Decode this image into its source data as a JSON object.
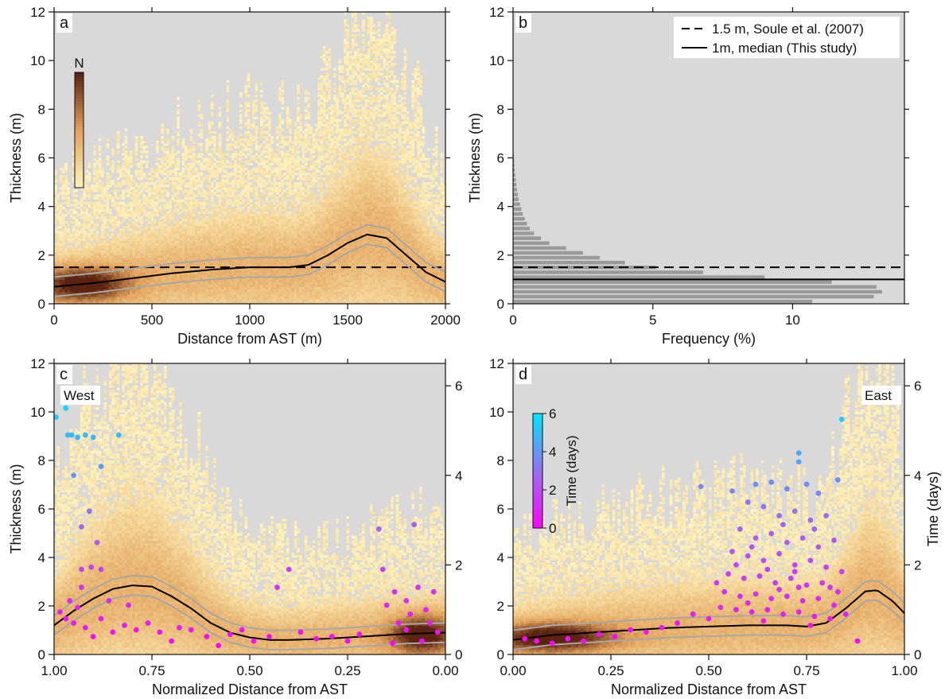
{
  "colors": {
    "plot_bg": "#d9d9d9",
    "density_low": "#fff4bf",
    "density_mid": "#e3a45d",
    "density_high": "#5c2410",
    "median_line": "#000000",
    "envelope": "#a7a7a7",
    "histogram_bar": "#9a9a9a",
    "time_low": "#ff00ff",
    "time_mid": "#9b6cf0",
    "time_high": "#00e5ff"
  },
  "chart_data": [
    {
      "panel": "a",
      "type": "heatmap",
      "xlabel": "Distance from AST (m)",
      "ylabel": "Thickness (m)",
      "xlim": [
        0,
        2000
      ],
      "ylim": [
        0,
        12
      ],
      "xticks": [
        "0",
        "500",
        "1000",
        "1500",
        "2000"
      ],
      "yticks": [
        "0",
        "2",
        "4",
        "6",
        "8",
        "10",
        "12"
      ],
      "colorbar_label": "N",
      "reference_line_y": 1.5,
      "median_curve": {
        "x": [
          0,
          200,
          400,
          600,
          800,
          1000,
          1200,
          1300,
          1400,
          1500,
          1600,
          1700,
          1800,
          1900,
          2000
        ],
        "y": [
          0.7,
          0.85,
          1.05,
          1.25,
          1.4,
          1.5,
          1.5,
          1.6,
          2.0,
          2.5,
          2.85,
          2.7,
          2.0,
          1.3,
          0.9
        ]
      },
      "envelope_offset": 0.4
    },
    {
      "panel": "b",
      "type": "bar",
      "orientation": "horizontal",
      "xlabel": "Frequency (%)",
      "ylabel": "Thickness (m)",
      "xlim": [
        0,
        14
      ],
      "ylim": [
        0,
        12
      ],
      "xticks": [
        "0",
        "5",
        "10"
      ],
      "yticks": [
        "0",
        "2",
        "4",
        "6",
        "8",
        "10",
        "12"
      ],
      "bin_width": 0.2,
      "bin_starts": [
        0.0,
        0.2,
        0.4,
        0.6,
        0.8,
        1.0,
        1.2,
        1.4,
        1.6,
        1.8,
        2.0,
        2.2,
        2.4,
        2.6,
        2.8,
        3.0,
        3.2,
        3.4,
        3.6,
        3.8,
        4.0,
        4.2,
        4.4,
        4.6,
        4.8,
        5.0,
        5.2,
        5.4,
        5.6,
        5.8,
        6.0
      ],
      "values": [
        10.7,
        12.9,
        13.2,
        13.0,
        11.4,
        9.0,
        6.8,
        5.1,
        4.0,
        3.1,
        2.5,
        1.9,
        1.3,
        1.0,
        0.75,
        0.6,
        0.5,
        0.42,
        0.35,
        0.3,
        0.25,
        0.2,
        0.17,
        0.14,
        0.12,
        0.1,
        0.08,
        0.06,
        0.05,
        0.04,
        0.03
      ],
      "legend": [
        {
          "style": "dashed",
          "label": "1.5 m, Soule et al. (2007)",
          "y": 1.5
        },
        {
          "style": "solid",
          "label": "1m, median (This study)",
          "y": 1.0
        }
      ]
    },
    {
      "panel": "c",
      "type": "heatmap",
      "side_label": "West",
      "xlabel": "Normalized Distance from AST",
      "ylabel": "Thickness (m)",
      "y2label": "",
      "xlim": [
        1.0,
        0.0
      ],
      "ylim": [
        0,
        12
      ],
      "y2lim": [
        0,
        6.5
      ],
      "xticks": [
        "1.00",
        "0.75",
        "0.50",
        "0.25",
        "0.00"
      ],
      "yticks": [
        "0",
        "2",
        "4",
        "6",
        "8",
        "10",
        "12"
      ],
      "y2ticks": [
        "0",
        "2",
        "4",
        "6"
      ],
      "median_curve": {
        "x": [
          1.0,
          0.95,
          0.9,
          0.85,
          0.8,
          0.75,
          0.7,
          0.65,
          0.6,
          0.55,
          0.5,
          0.45,
          0.4,
          0.3,
          0.2,
          0.1,
          0.0
        ],
        "y": [
          1.2,
          1.8,
          2.3,
          2.7,
          2.85,
          2.8,
          2.4,
          1.9,
          1.3,
          0.9,
          0.7,
          0.6,
          0.6,
          0.65,
          0.75,
          0.85,
          0.9
        ]
      },
      "envelope_offset": 0.4,
      "time_points": [
        {
          "x": 0.995,
          "t": 5.3
        },
        {
          "x": 0.97,
          "t": 5.5
        },
        {
          "x": 0.965,
          "t": 4.9
        },
        {
          "x": 0.955,
          "t": 4.9
        },
        {
          "x": 0.94,
          "t": 4.85
        },
        {
          "x": 0.92,
          "t": 4.9
        },
        {
          "x": 0.9,
          "t": 4.85
        },
        {
          "x": 0.835,
          "t": 4.9
        },
        {
          "x": 0.95,
          "t": 4.0
        },
        {
          "x": 0.88,
          "t": 4.2
        },
        {
          "x": 0.91,
          "t": 3.2
        },
        {
          "x": 0.93,
          "t": 2.85
        },
        {
          "x": 0.89,
          "t": 2.5
        },
        {
          "x": 0.93,
          "t": 1.9
        },
        {
          "x": 0.905,
          "t": 1.95
        },
        {
          "x": 0.88,
          "t": 1.9
        },
        {
          "x": 0.93,
          "t": 1.5
        },
        {
          "x": 0.96,
          "t": 1.2
        },
        {
          "x": 0.94,
          "t": 1.05
        },
        {
          "x": 0.86,
          "t": 1.2
        },
        {
          "x": 0.81,
          "t": 1.1
        },
        {
          "x": 0.985,
          "t": 0.95
        },
        {
          "x": 0.97,
          "t": 0.8
        },
        {
          "x": 0.95,
          "t": 0.7
        },
        {
          "x": 0.92,
          "t": 0.6
        },
        {
          "x": 0.9,
          "t": 0.4
        },
        {
          "x": 0.88,
          "t": 0.8
        },
        {
          "x": 0.85,
          "t": 0.5
        },
        {
          "x": 0.82,
          "t": 0.65
        },
        {
          "x": 0.79,
          "t": 0.55
        },
        {
          "x": 0.76,
          "t": 0.7
        },
        {
          "x": 0.73,
          "t": 0.5
        },
        {
          "x": 0.7,
          "t": 0.3
        },
        {
          "x": 0.68,
          "t": 0.6
        },
        {
          "x": 0.65,
          "t": 0.55
        },
        {
          "x": 0.61,
          "t": 0.4
        },
        {
          "x": 0.58,
          "t": 0.2
        },
        {
          "x": 0.55,
          "t": 0.45
        },
        {
          "x": 0.52,
          "t": 0.55
        },
        {
          "x": 0.49,
          "t": 0.3
        },
        {
          "x": 0.45,
          "t": 0.4
        },
        {
          "x": 0.43,
          "t": 1.5
        },
        {
          "x": 0.4,
          "t": 1.9
        },
        {
          "x": 0.37,
          "t": 0.5
        },
        {
          "x": 0.33,
          "t": 0.35
        },
        {
          "x": 0.29,
          "t": 0.4
        },
        {
          "x": 0.25,
          "t": 0.3
        },
        {
          "x": 0.22,
          "t": 0.45
        },
        {
          "x": 0.17,
          "t": 2.8
        },
        {
          "x": 0.16,
          "t": 1.9
        },
        {
          "x": 0.15,
          "t": 1.1
        },
        {
          "x": 0.13,
          "t": 1.4
        },
        {
          "x": 0.12,
          "t": 0.7
        },
        {
          "x": 0.1,
          "t": 1.2
        },
        {
          "x": 0.08,
          "t": 2.9
        },
        {
          "x": 0.07,
          "t": 1.5
        },
        {
          "x": 0.06,
          "t": 0.3
        },
        {
          "x": 0.05,
          "t": 1.0
        },
        {
          "x": 0.04,
          "t": 0.7
        },
        {
          "x": 0.03,
          "t": 1.4
        },
        {
          "x": 0.02,
          "t": 0.5
        },
        {
          "x": 0.1,
          "t": 0.55
        },
        {
          "x": 0.135,
          "t": 0.25
        },
        {
          "x": 0.09,
          "t": 0.9
        }
      ]
    },
    {
      "panel": "d",
      "type": "heatmap",
      "side_label": "East",
      "xlabel": "Normalized Distance from AST",
      "ylabel": "",
      "y2label": "Time (days)",
      "xlim": [
        0.0,
        1.0
      ],
      "ylim": [
        0,
        12
      ],
      "y2lim": [
        0,
        6.5
      ],
      "xticks": [
        "0.00",
        "0.25",
        "0.50",
        "0.75",
        "1.00"
      ],
      "yticks": [
        "0",
        "2",
        "4",
        "6",
        "8",
        "10",
        "12"
      ],
      "y2ticks": [
        "0",
        "2",
        "4",
        "6"
      ],
      "colorbar_label": "Time (days)",
      "colorbar_ticks": [
        "0",
        "2",
        "4",
        "6"
      ],
      "median_curve": {
        "x": [
          0.0,
          0.1,
          0.2,
          0.3,
          0.4,
          0.5,
          0.6,
          0.7,
          0.75,
          0.8,
          0.85,
          0.9,
          0.93,
          0.97,
          1.0
        ],
        "y": [
          0.6,
          0.8,
          0.9,
          1.0,
          1.1,
          1.15,
          1.2,
          1.2,
          1.15,
          1.3,
          1.9,
          2.6,
          2.65,
          2.2,
          1.7
        ]
      },
      "envelope_offset": 0.4,
      "time_points": [
        {
          "x": 0.84,
          "t": 5.25
        },
        {
          "x": 0.73,
          "t": 4.5
        },
        {
          "x": 0.73,
          "t": 4.3
        },
        {
          "x": 0.48,
          "t": 3.75
        },
        {
          "x": 0.83,
          "t": 3.9
        },
        {
          "x": 0.66,
          "t": 3.85
        },
        {
          "x": 0.62,
          "t": 3.8
        },
        {
          "x": 0.7,
          "t": 3.7
        },
        {
          "x": 0.75,
          "t": 3.8
        },
        {
          "x": 0.78,
          "t": 3.6
        },
        {
          "x": 0.56,
          "t": 3.65
        },
        {
          "x": 0.6,
          "t": 3.4
        },
        {
          "x": 0.64,
          "t": 3.3
        },
        {
          "x": 0.68,
          "t": 3.1
        },
        {
          "x": 0.72,
          "t": 3.2
        },
        {
          "x": 0.76,
          "t": 3.0
        },
        {
          "x": 0.8,
          "t": 3.1
        },
        {
          "x": 0.58,
          "t": 2.8
        },
        {
          "x": 0.62,
          "t": 2.6
        },
        {
          "x": 0.66,
          "t": 2.7
        },
        {
          "x": 0.7,
          "t": 2.5
        },
        {
          "x": 0.74,
          "t": 2.6
        },
        {
          "x": 0.78,
          "t": 2.4
        },
        {
          "x": 0.82,
          "t": 2.55
        },
        {
          "x": 0.56,
          "t": 2.3
        },
        {
          "x": 0.6,
          "t": 2.2
        },
        {
          "x": 0.64,
          "t": 2.1
        },
        {
          "x": 0.68,
          "t": 2.25
        },
        {
          "x": 0.72,
          "t": 2.0
        },
        {
          "x": 0.76,
          "t": 2.1
        },
        {
          "x": 0.8,
          "t": 1.95
        },
        {
          "x": 0.84,
          "t": 1.85
        },
        {
          "x": 0.55,
          "t": 1.8
        },
        {
          "x": 0.59,
          "t": 1.7
        },
        {
          "x": 0.63,
          "t": 1.75
        },
        {
          "x": 0.67,
          "t": 1.6
        },
        {
          "x": 0.71,
          "t": 1.7
        },
        {
          "x": 0.75,
          "t": 1.55
        },
        {
          "x": 0.79,
          "t": 1.6
        },
        {
          "x": 0.83,
          "t": 1.4
        },
        {
          "x": 0.54,
          "t": 1.4
        },
        {
          "x": 0.58,
          "t": 1.3
        },
        {
          "x": 0.62,
          "t": 1.35
        },
        {
          "x": 0.66,
          "t": 1.25
        },
        {
          "x": 0.7,
          "t": 1.3
        },
        {
          "x": 0.74,
          "t": 1.2
        },
        {
          "x": 0.78,
          "t": 1.25
        },
        {
          "x": 0.82,
          "t": 1.1
        },
        {
          "x": 0.53,
          "t": 1.05
        },
        {
          "x": 0.57,
          "t": 1.0
        },
        {
          "x": 0.61,
          "t": 0.95
        },
        {
          "x": 0.65,
          "t": 1.0
        },
        {
          "x": 0.69,
          "t": 0.9
        },
        {
          "x": 0.73,
          "t": 0.95
        },
        {
          "x": 0.77,
          "t": 0.85
        },
        {
          "x": 0.81,
          "t": 0.8
        },
        {
          "x": 0.85,
          "t": 0.9
        },
        {
          "x": 0.88,
          "t": 0.3
        },
        {
          "x": 0.5,
          "t": 0.8
        },
        {
          "x": 0.46,
          "t": 0.9
        },
        {
          "x": 0.42,
          "t": 0.7
        },
        {
          "x": 0.38,
          "t": 0.6
        },
        {
          "x": 0.34,
          "t": 0.5
        },
        {
          "x": 0.3,
          "t": 0.55
        },
        {
          "x": 0.26,
          "t": 0.4
        },
        {
          "x": 0.22,
          "t": 0.45
        },
        {
          "x": 0.18,
          "t": 0.3
        },
        {
          "x": 0.14,
          "t": 0.35
        },
        {
          "x": 0.1,
          "t": 0.25
        },
        {
          "x": 0.06,
          "t": 0.3
        },
        {
          "x": 0.03,
          "t": 0.35
        },
        {
          "x": 0.6,
          "t": 1.15
        },
        {
          "x": 0.64,
          "t": 0.75
        },
        {
          "x": 0.68,
          "t": 1.45
        },
        {
          "x": 0.72,
          "t": 1.85
        },
        {
          "x": 0.76,
          "t": 0.65
        },
        {
          "x": 0.57,
          "t": 2.0
        },
        {
          "x": 0.61,
          "t": 2.4
        },
        {
          "x": 0.65,
          "t": 1.9
        },
        {
          "x": 0.69,
          "t": 2.9
        },
        {
          "x": 0.73,
          "t": 1.5
        },
        {
          "x": 0.77,
          "t": 2.8
        },
        {
          "x": 0.81,
          "t": 1.5
        },
        {
          "x": 0.52,
          "t": 1.6
        }
      ]
    }
  ]
}
